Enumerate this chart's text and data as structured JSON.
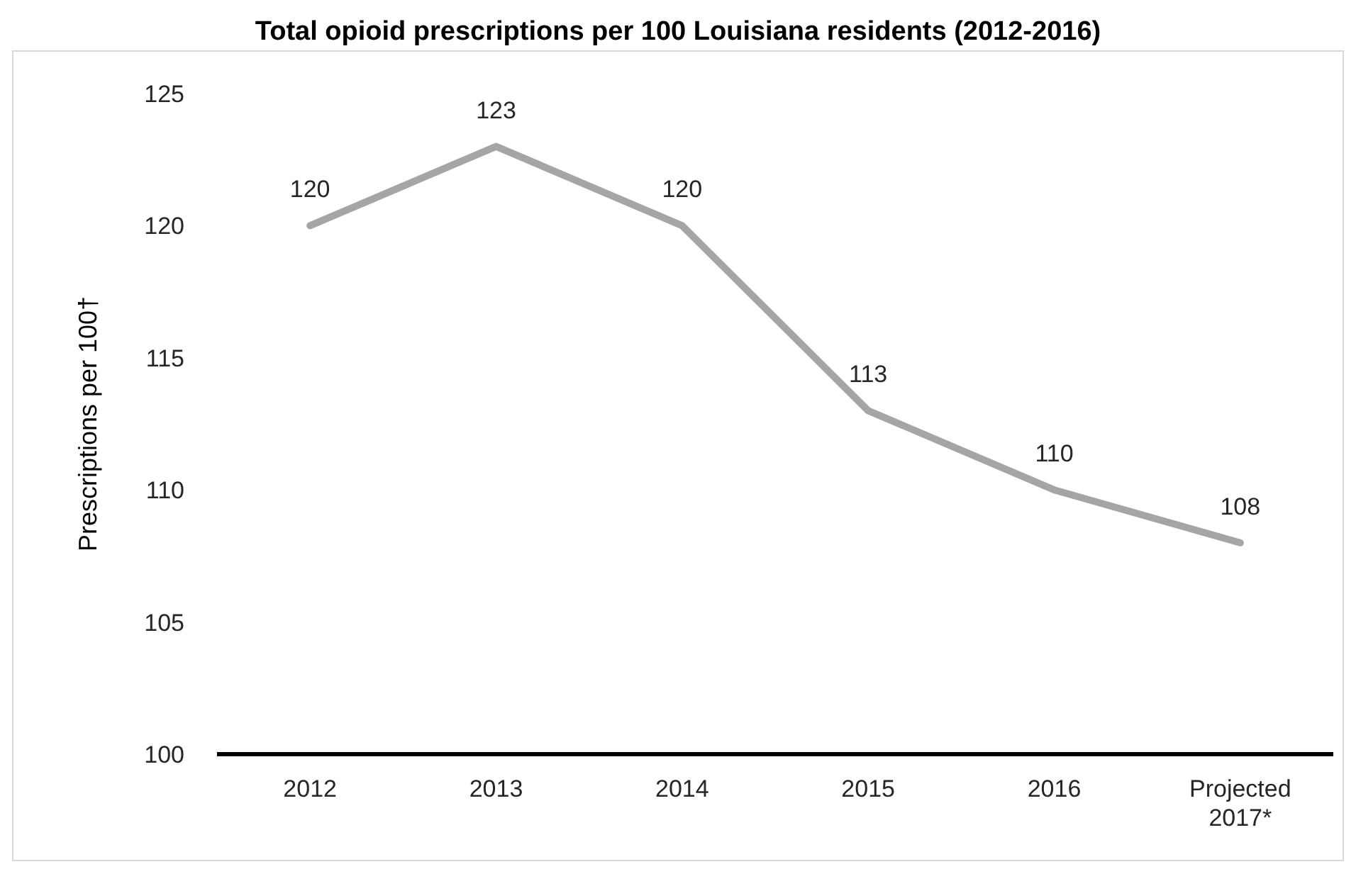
{
  "chart_data": {
    "type": "line",
    "title": "Total opioid prescriptions per 100 Louisiana residents (2012-2016)",
    "ylabel": "Prescriptions per 100†",
    "categories": [
      "2012",
      "2013",
      "2014",
      "2015",
      "2016",
      "Projected 2017*"
    ],
    "series": [
      {
        "color": "#a5a5a5",
        "values": [
          120,
          123,
          120,
          113,
          110,
          108
        ]
      }
    ],
    "ylim": [
      100,
      125
    ],
    "yticks": [
      100,
      105,
      110,
      115,
      120,
      125
    ],
    "grid": false,
    "marker": "none",
    "line_style": "solid",
    "data_labels": true
  }
}
